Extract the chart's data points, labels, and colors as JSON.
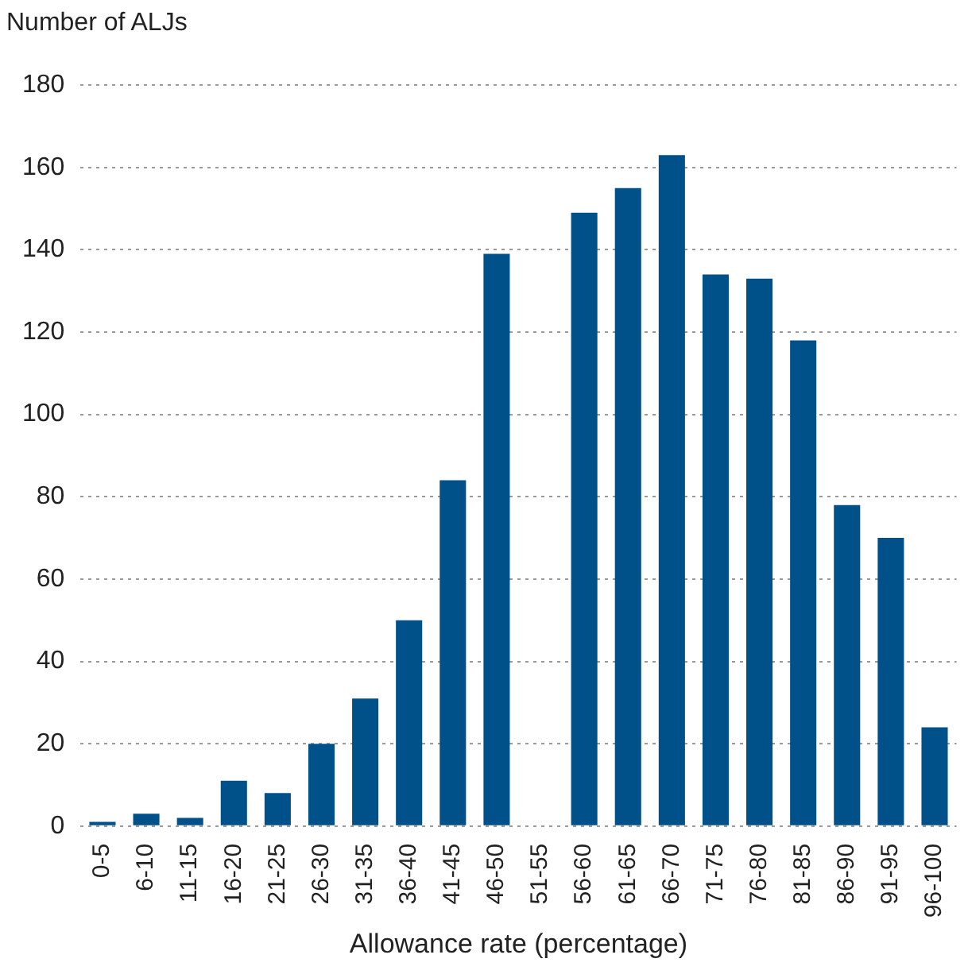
{
  "chart_data": {
    "type": "bar",
    "ylabel": "Number of ALJs",
    "xlabel": "Allowance rate (percentage)",
    "categories": [
      "0-5",
      "6-10",
      "11-15",
      "16-20",
      "21-25",
      "26-30",
      "31-35",
      "36-40",
      "41-45",
      "46-50",
      "51-55",
      "56-60",
      "61-65",
      "66-70",
      "71-75",
      "76-80",
      "81-85",
      "86-90",
      "91-95",
      "96-100"
    ],
    "values": [
      1,
      3,
      2,
      11,
      8,
      20,
      31,
      50,
      84,
      139,
      null,
      149,
      155,
      163,
      134,
      133,
      118,
      78,
      70,
      24
    ],
    "color": "#00508a",
    "ylim": [
      0,
      180
    ],
    "yticks": [
      0,
      20,
      40,
      60,
      80,
      100,
      120,
      140,
      160,
      180
    ],
    "grid": "y",
    "legend": false
  }
}
